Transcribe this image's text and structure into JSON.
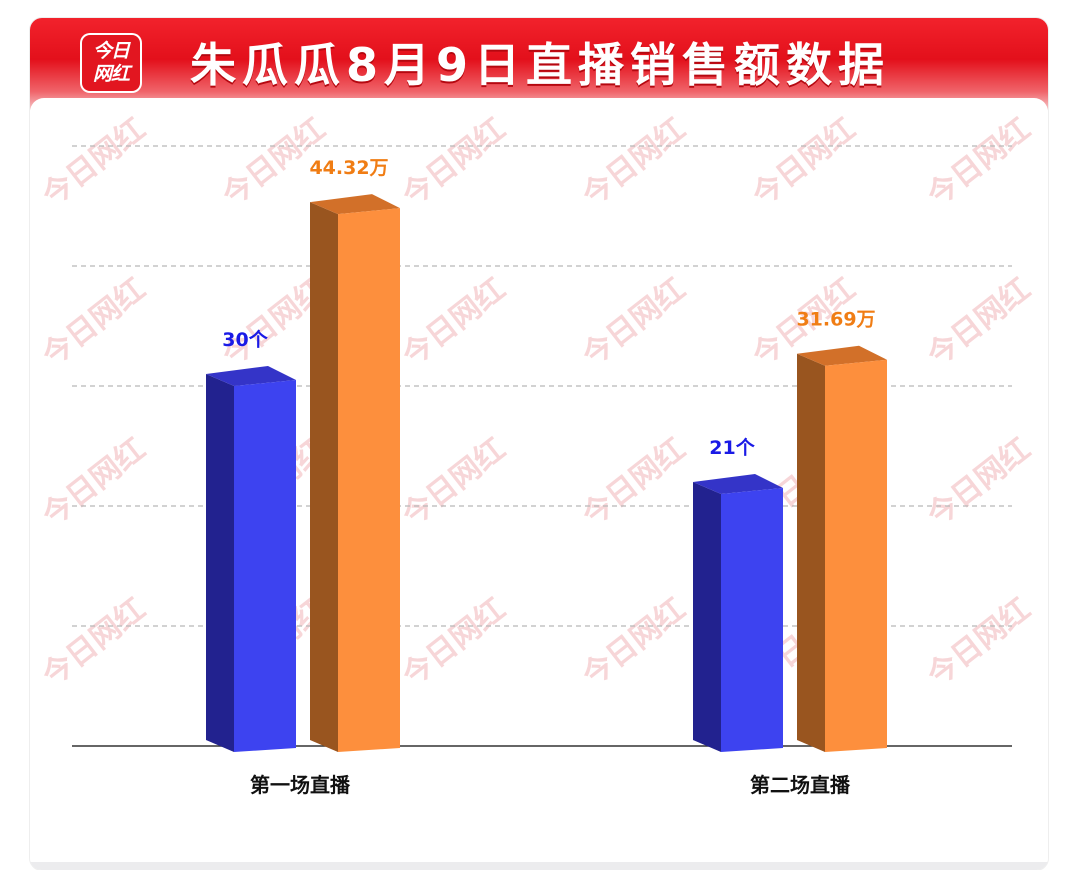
{
  "header": {
    "logo_line1": "今日",
    "logo_line2": "网红",
    "title": "朱瓜瓜8月9日直播销售额数据"
  },
  "watermark": "今日网红",
  "colors": {
    "header_red": "#e3101b",
    "blue_front": "#3d43f0",
    "blue_side": "#22228f",
    "blue_top": "#3434c8",
    "orange_front": "#fd8f3d",
    "orange_side": "#99551f",
    "orange_top": "#d27029",
    "blue_label": "#1a1ae6",
    "orange_label": "#f07d14"
  },
  "chart_data": {
    "type": "bar",
    "categories": [
      "第一场直播",
      "第二场直播"
    ],
    "series": [
      {
        "values": [
          30,
          21
        ],
        "labels": [
          "30个",
          "21个"
        ],
        "color": "#3d43f0"
      },
      {
        "values": [
          44.32,
          31.69
        ],
        "labels": [
          "44.32万",
          "31.69万"
        ],
        "color": "#fd8f3d"
      }
    ],
    "ylim_series1": [
      0,
      50
    ],
    "ylim_series2": [
      0,
      50
    ],
    "grid": true,
    "grid_style": "dashed"
  }
}
